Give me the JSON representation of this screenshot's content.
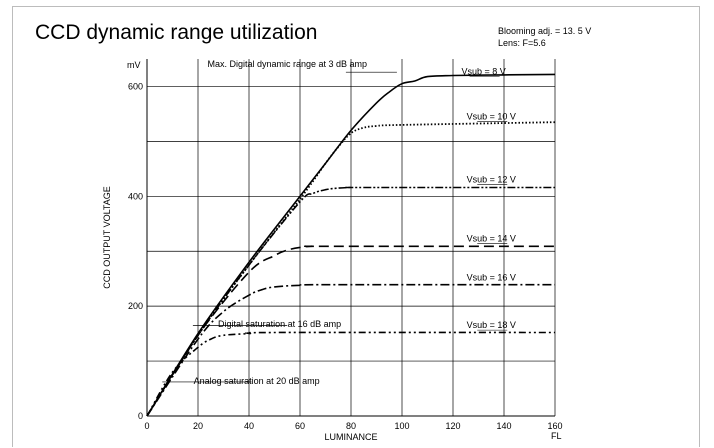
{
  "chart_data": {
    "type": "line",
    "title": "CCD dynamic range utilization",
    "notes": [
      "Blooming adj. = 13. 5 V",
      "Lens: F=5.6"
    ],
    "xlabel": "LUMINANCE",
    "xunit": "FL",
    "ylabel": "CCD OUTPUT VOLTAGE",
    "yunit": "mV",
    "xlim": [
      0,
      160
    ],
    "ylim": [
      0,
      650
    ],
    "xticks": [
      0,
      20,
      40,
      60,
      80,
      100,
      120,
      140,
      160
    ],
    "yticks": [
      0,
      200,
      400,
      600
    ],
    "grid": true,
    "series": [
      {
        "name": "Vsub = 8 V",
        "style": "solid",
        "x": [
          0,
          20,
          40,
          60,
          70,
          80,
          90,
          95,
          100,
          105,
          110,
          120,
          140,
          160
        ],
        "y": [
          0,
          150,
          280,
          400,
          460,
          520,
          570,
          590,
          605,
          610,
          618,
          620,
          621,
          622
        ]
      },
      {
        "name": "Vsub = 10 V",
        "style": "dotted",
        "x": [
          0,
          20,
          40,
          60,
          70,
          75,
          80,
          85,
          90,
          100,
          160
        ],
        "y": [
          0,
          147,
          275,
          395,
          460,
          490,
          515,
          525,
          528,
          530,
          535
        ]
      },
      {
        "name": "Vsub = 12 V",
        "style": "dashdotdot",
        "x": [
          0,
          20,
          40,
          60,
          65,
          70,
          75,
          80,
          85,
          160
        ],
        "y": [
          0,
          147,
          275,
          390,
          405,
          412,
          415,
          416,
          416,
          416
        ]
      },
      {
        "name": "Vsub = 14 V",
        "style": "dashed",
        "x": [
          0,
          20,
          40,
          50,
          55,
          60,
          65,
          70,
          160
        ],
        "y": [
          0,
          147,
          262,
          292,
          302,
          307,
          309,
          309,
          309
        ]
      },
      {
        "name": "Vsub = 16 V",
        "style": "dashdot",
        "x": [
          0,
          20,
          30,
          40,
          45,
          50,
          60,
          70,
          160
        ],
        "y": [
          0,
          140,
          190,
          220,
          230,
          235,
          238,
          239,
          239
        ]
      },
      {
        "name": "Vsub = 18 V",
        "style": "dashdotdot2",
        "x": [
          0,
          10,
          20,
          25,
          30,
          40,
          50,
          160
        ],
        "y": [
          0,
          80,
          125,
          140,
          147,
          150,
          152,
          152
        ]
      }
    ],
    "annotations": [
      "Max. Digital dynamic range at 3 dB amp",
      "Digital saturation at 16 dB amp",
      "Analog saturation at 20 dB amp"
    ]
  }
}
